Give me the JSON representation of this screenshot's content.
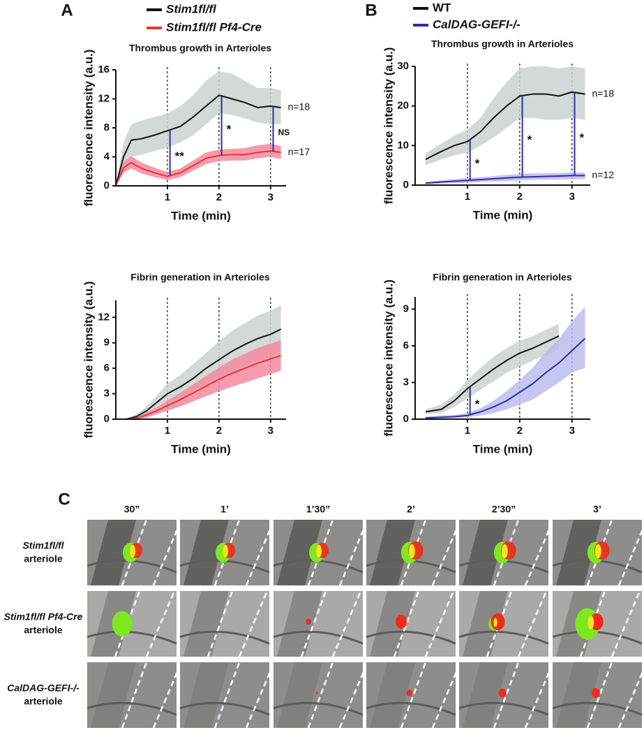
{
  "figure": {
    "panels": [
      "A",
      "B",
      "C"
    ]
  },
  "chart_data": [
    {
      "type": "line",
      "title": "Thrombus growth in Arterioles",
      "xlabel": "Time (min)",
      "ylabel": "fluorescence intensity (a.u.)",
      "xlim": [
        0,
        3.3
      ],
      "ylim": [
        0,
        16
      ],
      "xticks": [
        1,
        2,
        3
      ],
      "yticks": [
        0,
        4,
        8,
        12,
        16
      ],
      "x": [
        0,
        0.15,
        0.3,
        0.5,
        0.75,
        1,
        1.25,
        1.5,
        1.75,
        2,
        2.25,
        2.5,
        2.75,
        3,
        3.2
      ],
      "series": [
        {
          "name": "Stim1fl/fl",
          "color": "#111111",
          "band_color": "#cbd2cf",
          "n": "n=18",
          "values": [
            0,
            4,
            6.3,
            6.5,
            7,
            7.6,
            8.2,
            9.5,
            11,
            12.5,
            12,
            11.5,
            10.8,
            11,
            10.8
          ],
          "lower": [
            0,
            2,
            4,
            4.3,
            4.8,
            5.3,
            6,
            7,
            8.5,
            10,
            9.8,
            9.3,
            8.7,
            8.5,
            8.5
          ],
          "upper": [
            0,
            6,
            8.5,
            9,
            9.5,
            10,
            11,
            12.5,
            14.5,
            15.8,
            15.5,
            14.5,
            13.5,
            13.5,
            13.2
          ]
        },
        {
          "name": "Stim1fl/fl Pf4-Cre",
          "color": "#e8362b",
          "band_color": "#f28aa0",
          "n": "n=17",
          "values": [
            0,
            2.5,
            3.2,
            2.4,
            1.8,
            1.3,
            1.8,
            2.8,
            3.8,
            4.2,
            4.3,
            4.3,
            4.6,
            4.8,
            4.6
          ],
          "lower": [
            0,
            1.8,
            2.4,
            1.7,
            1.2,
            0.8,
            1.2,
            2.1,
            3,
            3.4,
            3.5,
            3.5,
            3.8,
            4,
            3.7
          ],
          "upper": [
            0,
            3.3,
            4.1,
            3.2,
            2.5,
            1.9,
            2.4,
            3.5,
            4.6,
            5,
            5.1,
            5.2,
            5.6,
            5.8,
            5.5
          ]
        }
      ],
      "significance": [
        {
          "x": 1.05,
          "label": "**"
        },
        {
          "x": 2.05,
          "label": "*"
        },
        {
          "x": 3.05,
          "label": "NS"
        }
      ]
    },
    {
      "type": "line",
      "title": "Fibrin generation in Arterioles",
      "xlabel": "Time (min)",
      "ylabel": "fluorescence intensity (a.u.)",
      "xlim": [
        0,
        3.3
      ],
      "ylim": [
        0,
        14
      ],
      "xticks": [
        1,
        2,
        3
      ],
      "yticks": [
        0,
        3,
        6,
        9,
        12
      ],
      "x": [
        0.2,
        0.4,
        0.6,
        0.8,
        1,
        1.25,
        1.5,
        1.75,
        2,
        2.25,
        2.5,
        2.75,
        3,
        3.2
      ],
      "series": [
        {
          "color": "#111111",
          "band_color": "#cbd2cf",
          "values": [
            0,
            0.3,
            1,
            2,
            3,
            3.8,
            4.8,
            6,
            7,
            8,
            8.8,
            9.5,
            10,
            10.6
          ],
          "lower": [
            0,
            0.1,
            0.6,
            1.3,
            2,
            2.6,
            3.4,
            4.3,
            5,
            5.8,
            6.4,
            7,
            7.4,
            7.9
          ],
          "upper": [
            0,
            0.6,
            1.5,
            2.8,
            4.2,
            5.2,
            6.5,
            7.8,
            9.2,
            10.4,
            11.3,
            12.2,
            12.8,
            13.4
          ]
        },
        {
          "color": "#e8362b",
          "band_color": "#f28aa0",
          "values": [
            0,
            0.1,
            0.5,
            1,
            1.6,
            2.3,
            3.1,
            3.9,
            4.7,
            5.4,
            6,
            6.6,
            7.1,
            7.5
          ],
          "lower": [
            0,
            0,
            0.2,
            0.6,
            1,
            1.5,
            2.1,
            2.7,
            3.3,
            3.8,
            4.3,
            4.8,
            5.3,
            5.7
          ],
          "upper": [
            0,
            0.2,
            0.8,
            1.4,
            2.2,
            3.1,
            4.1,
            5.1,
            6.1,
            7,
            7.7,
            8.4,
            8.9,
            9.3
          ]
        }
      ],
      "significance": []
    },
    {
      "type": "line",
      "title": "Thrombus growth in Arterioles",
      "xlabel": "Time (min)",
      "ylabel": "fluorescence intensity (a.u.)",
      "xlim": [
        0,
        3.35
      ],
      "ylim": [
        0,
        30
      ],
      "xticks": [
        1,
        2,
        3
      ],
      "yticks": [
        0,
        10,
        20,
        30
      ],
      "x": [
        0.2,
        0.5,
        0.75,
        1,
        1.25,
        1.5,
        1.75,
        2,
        2.25,
        2.5,
        2.75,
        3,
        3.25
      ],
      "series": [
        {
          "name": "WT",
          "color": "#111111",
          "band_color": "#cbd2cf",
          "n": "n=18",
          "values": [
            6.5,
            8.5,
            10,
            11,
            13.5,
            17,
            20,
            22.5,
            23,
            23,
            22.5,
            23.5,
            23
          ],
          "lower": [
            5,
            6.5,
            7.5,
            8.2,
            10,
            12,
            14.5,
            17,
            17,
            16.5,
            16.5,
            17,
            16.5
          ],
          "upper": [
            8,
            10.5,
            12.5,
            14,
            17,
            22,
            26,
            29.5,
            30,
            30,
            29.5,
            30,
            29.5
          ]
        },
        {
          "name": "CalDAG-GEFI-/-",
          "color": "#2a2fa8",
          "band_color": "#bcbcee",
          "n": "n=12",
          "values": [
            0.5,
            0.8,
            1,
            1.2,
            1.4,
            1.6,
            1.8,
            2,
            2.1,
            2.2,
            2.3,
            2.4,
            2.4
          ],
          "lower": [
            0.2,
            0.4,
            0.5,
            0.6,
            0.8,
            0.9,
            1,
            1.2,
            1.3,
            1.4,
            1.4,
            1.5,
            1.5
          ],
          "upper": [
            0.8,
            1.2,
            1.5,
            1.8,
            2,
            2.3,
            2.6,
            2.8,
            3,
            3,
            3.1,
            3.2,
            3.2
          ]
        }
      ],
      "significance": [
        {
          "x": 1.05,
          "label": "*"
        },
        {
          "x": 2.05,
          "label": "*"
        },
        {
          "x": 3.05,
          "label": "*"
        }
      ]
    },
    {
      "type": "line",
      "title": "Fibrin generation in Arterioles",
      "xlabel": "Time (min)",
      "ylabel": "fluorescence intensity (a.u.)",
      "xlim": [
        0,
        3.35
      ],
      "ylim": [
        0,
        10
      ],
      "xticks": [
        1,
        2,
        3
      ],
      "yticks": [
        0,
        3,
        6,
        9
      ],
      "x": [
        0.2,
        0.5,
        0.75,
        1,
        1.25,
        1.5,
        1.75,
        2,
        2.25,
        2.5,
        2.75,
        3,
        3.25
      ],
      "series": [
        {
          "color": "#111111",
          "band_color": "#cbd2cf",
          "values": [
            0.6,
            0.8,
            1.5,
            2.5,
            3.3,
            4.1,
            4.8,
            5.4,
            5.8,
            6.3,
            6.8,
            null,
            null
          ],
          "lower": [
            0.4,
            0.5,
            1,
            1.7,
            2.4,
            3.1,
            3.8,
            4.3,
            4.8,
            5.2,
            5.7,
            null,
            null
          ],
          "upper": [
            0.8,
            1.2,
            2,
            3.2,
            4.2,
            5.1,
            5.8,
            6.4,
            6.8,
            7.3,
            7.8,
            null,
            null
          ]
        },
        {
          "color": "#2a2fa8",
          "band_color": "#bcbcee",
          "values": [
            0.1,
            0.15,
            0.2,
            0.3,
            0.6,
            1,
            1.5,
            2.2,
            2.9,
            3.8,
            4.6,
            5.6,
            6.6
          ],
          "lower": [
            0,
            0.05,
            0.1,
            0.15,
            0.3,
            0.5,
            0.8,
            1.2,
            1.6,
            2.3,
            3,
            3.8,
            4.2
          ],
          "upper": [
            0.2,
            0.3,
            0.35,
            0.5,
            0.9,
            1.5,
            2.3,
            3.2,
            4.2,
            5.5,
            6.6,
            8,
            9.2
          ]
        }
      ],
      "significance": [
        {
          "x": 1.05,
          "label": "*"
        }
      ]
    }
  ],
  "panel_c": {
    "columns": [
      "30”",
      "1’",
      "1’30”",
      "2’",
      "2’30”",
      "3’"
    ],
    "rows": [
      {
        "genotype": "Stim1fl/fl",
        "vessel": "arteriole"
      },
      {
        "genotype": "Stim1fl/fl Pf4-Cre",
        "vessel": "arteriole"
      },
      {
        "genotype": "CalDAG-GEFI-/-",
        "vessel": "arteriole"
      }
    ]
  }
}
